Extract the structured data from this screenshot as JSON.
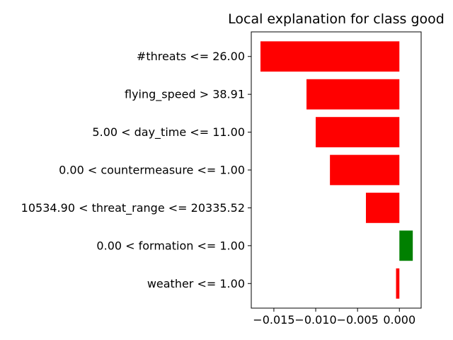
{
  "chart_data": {
    "type": "bar",
    "orientation": "horizontal",
    "title": "Local explanation for class good",
    "xlabel": "",
    "ylabel": "",
    "categories": [
      "#threats <= 26.00",
      "flying_speed > 38.91",
      "5.00 < day_time <= 11.00",
      "0.00 < countermeasure <= 1.00",
      "10534.90 < threat_range <= 20335.52",
      "0.00 < formation <= 1.00",
      "weather <= 1.00"
    ],
    "values": [
      -0.0166,
      -0.0111,
      -0.01,
      -0.0083,
      -0.004,
      0.0016,
      -0.0004
    ],
    "positive_color": "#008000",
    "negative_color": "#ff0000",
    "xlim": [
      -0.0177,
      0.0026
    ],
    "xticks": [
      -0.015,
      -0.01,
      -0.005,
      0.0
    ],
    "xtick_labels": [
      "−0.015",
      "−0.010",
      "−0.005",
      "0.000"
    ],
    "grid": false,
    "legend": "none"
  }
}
